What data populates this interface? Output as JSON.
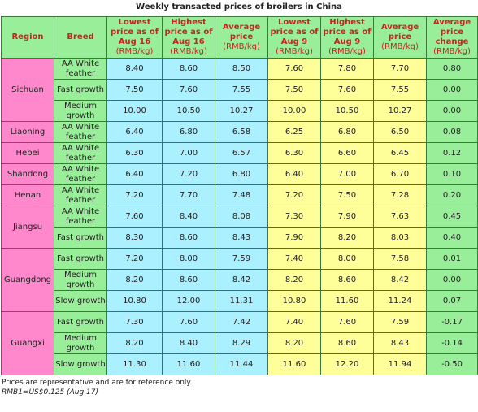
{
  "title": "Weekly transacted prices of broilers in China",
  "headers": {
    "region": "Region",
    "breed": "Breed",
    "low_aug16": "Lowest price as of Aug 16",
    "high_aug16": "Highest price as of Aug 16",
    "avg": "Average price",
    "low_aug9": "Lowest price as of Aug 9",
    "high_aug9": "Highest price as of Aug 9",
    "avg2": "Average price",
    "change": "Average price change",
    "unit": "(RMB/kg)"
  },
  "regions": [
    {
      "name": "Sichuan",
      "rows": [
        {
          "breed": "AA White feather",
          "v": [
            "8.40",
            "8.60",
            "8.50",
            "7.60",
            "7.80",
            "7.70",
            "0.80"
          ]
        },
        {
          "breed": "Fast growth",
          "v": [
            "7.50",
            "7.60",
            "7.55",
            "7.50",
            "7.60",
            "7.55",
            "0.00"
          ]
        },
        {
          "breed": "Medium growth",
          "v": [
            "10.00",
            "10.50",
            "10.27",
            "10.00",
            "10.50",
            "10.27",
            "0.00"
          ]
        }
      ]
    },
    {
      "name": "Liaoning",
      "rows": [
        {
          "breed": "AA White feather",
          "v": [
            "6.40",
            "6.80",
            "6.58",
            "6.25",
            "6.80",
            "6.50",
            "0.08"
          ]
        }
      ]
    },
    {
      "name": "Hebei",
      "rows": [
        {
          "breed": "AA White feather",
          "v": [
            "6.30",
            "7.00",
            "6.57",
            "6.30",
            "6.60",
            "6.45",
            "0.12"
          ]
        }
      ]
    },
    {
      "name": "Shandong",
      "rows": [
        {
          "breed": "AA White feather",
          "v": [
            "6.40",
            "7.20",
            "6.80",
            "6.40",
            "7.00",
            "6.70",
            "0.10"
          ]
        }
      ]
    },
    {
      "name": "Henan",
      "rows": [
        {
          "breed": "AA White feather",
          "v": [
            "7.20",
            "7.70",
            "7.48",
            "7.20",
            "7.50",
            "7.28",
            "0.20"
          ]
        }
      ]
    },
    {
      "name": "Jiangsu",
      "rows": [
        {
          "breed": "AA White feather",
          "v": [
            "7.60",
            "8.40",
            "8.08",
            "7.30",
            "7.90",
            "7.63",
            "0.45"
          ]
        },
        {
          "breed": "Fast growth",
          "v": [
            "8.30",
            "8.60",
            "8.43",
            "7.90",
            "8.20",
            "8.03",
            "0.40"
          ]
        }
      ]
    },
    {
      "name": "Guangdong",
      "rows": [
        {
          "breed": "Fast growth",
          "v": [
            "7.20",
            "8.00",
            "7.59",
            "7.40",
            "8.00",
            "7.58",
            "0.01"
          ]
        },
        {
          "breed": "Medium growth",
          "v": [
            "8.20",
            "8.60",
            "8.42",
            "8.20",
            "8.60",
            "8.42",
            "0.00"
          ]
        },
        {
          "breed": "Slow growth",
          "v": [
            "10.80",
            "12.00",
            "11.31",
            "10.80",
            "11.60",
            "11.24",
            "0.07"
          ]
        }
      ]
    },
    {
      "name": "Guangxi",
      "rows": [
        {
          "breed": "Fast growth",
          "v": [
            "7.30",
            "7.60",
            "7.42",
            "7.40",
            "7.60",
            "7.59",
            "-0.17"
          ]
        },
        {
          "breed": "Medium growth",
          "v": [
            "8.20",
            "8.40",
            "8.29",
            "8.20",
            "8.60",
            "8.43",
            "-0.14"
          ]
        },
        {
          "breed": "Slow growth",
          "v": [
            "11.30",
            "11.60",
            "11.44",
            "11.60",
            "12.20",
            "11.94",
            "-0.50"
          ]
        }
      ]
    }
  ],
  "notes": {
    "line1": "Prices are representative and are for reference only.",
    "line2": "RMB1=US$0.125 (Aug 17)"
  },
  "colors": {
    "header_bg": "#99ee99",
    "header_text": "#cc2222",
    "region_bg": "#ff88cc",
    "aug16_bg": "#aaf0ff",
    "aug9_bg": "#ffff99",
    "change_bg": "#99ee99",
    "border": "#3a7a3a"
  }
}
